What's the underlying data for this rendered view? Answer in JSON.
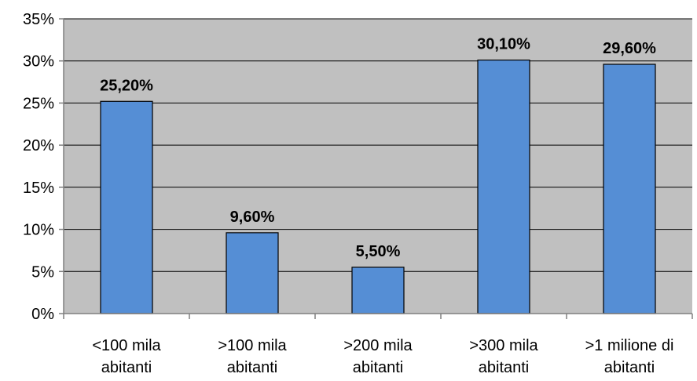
{
  "chart_data": {
    "type": "bar",
    "title": "",
    "xlabel": "",
    "ylabel": "",
    "categories": [
      [
        "<100 mila",
        "abitanti"
      ],
      [
        ">100 mila",
        "abitanti"
      ],
      [
        ">200 mila",
        "abitanti"
      ],
      [
        ">300 mila",
        "abitanti"
      ],
      [
        ">1 milione di",
        "abitanti"
      ]
    ],
    "values": [
      25.2,
      9.6,
      5.5,
      30.1,
      29.6
    ],
    "data_labels": [
      "25,20%",
      "9,60%",
      "5,50%",
      "30,10%",
      "29,60%"
    ],
    "ylim": [
      0,
      35
    ],
    "y_ticks": [
      0,
      5,
      10,
      15,
      20,
      25,
      30,
      35
    ],
    "y_tick_labels": [
      "0%",
      "5%",
      "10%",
      "15%",
      "20%",
      "25%",
      "30%",
      "35%"
    ],
    "grid": true,
    "legend": "none",
    "colors": {
      "bar": "#558ed5",
      "bar_border": "#000000",
      "plot_background": "#c0c0c0",
      "gridline": "#000000"
    }
  }
}
